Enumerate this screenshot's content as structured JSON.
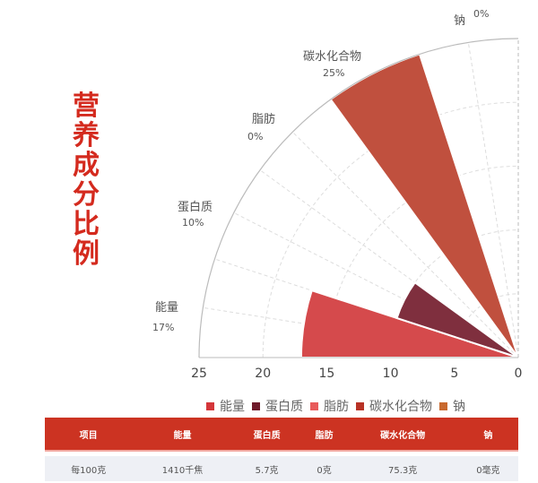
{
  "title": "营养成分比例",
  "chart_data": {
    "type": "polar-bar",
    "categories": [
      "能量",
      "蛋白质",
      "脂肪",
      "碳水化合物",
      "钠"
    ],
    "values": [
      17,
      10,
      0,
      25,
      0
    ],
    "labels": [
      "17%",
      "10%",
      "0%",
      "25%",
      "0%"
    ],
    "colors": [
      "#d54a4c",
      "#7f2f3e",
      "#e85f5f",
      "#c0503e",
      "#c9662e"
    ],
    "legend_colors": [
      "#d4363a",
      "#6e1a2a",
      "#e85a5a",
      "#b83226",
      "#c8692e"
    ],
    "radius_ticks": [
      "25",
      "20",
      "15",
      "10",
      "5",
      "0"
    ],
    "rmax": 25,
    "legend_position": "bottom"
  },
  "table": {
    "headers": [
      "项目",
      "能量",
      "蛋白质",
      "脂肪",
      "碳水化合物",
      "钠"
    ],
    "row": [
      "每100克",
      "1410千焦",
      "5.7克",
      "0克",
      "75.3克",
      "0毫克"
    ]
  }
}
